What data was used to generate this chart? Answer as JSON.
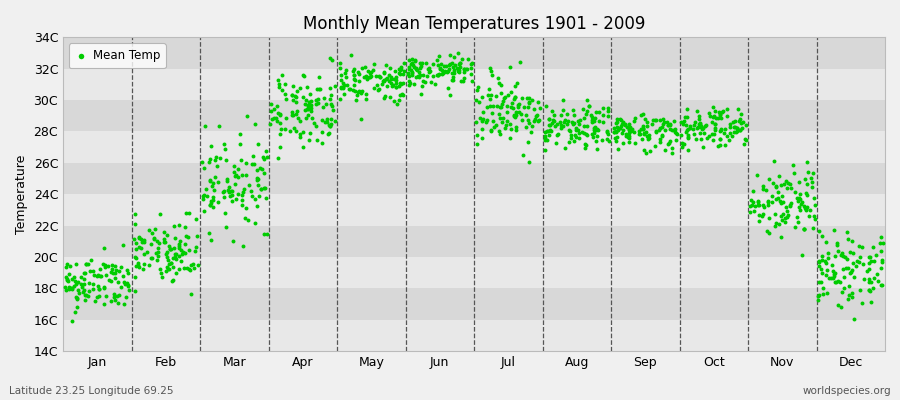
{
  "title": "Monthly Mean Temperatures 1901 - 2009",
  "ylabel": "Temperature",
  "subtitle_left": "Latitude 23.25 Longitude 69.25",
  "subtitle_right": "worldspecies.org",
  "legend_label": "Mean Temp",
  "dot_color": "#00cc00",
  "bg_color": "#f0f0f0",
  "plot_bg_color": "#f0f0f0",
  "stripe_color_light": "#e8e8e8",
  "stripe_color_dark": "#d8d8d8",
  "ylim": [
    14,
    34
  ],
  "yticks": [
    14,
    16,
    18,
    20,
    22,
    24,
    26,
    28,
    30,
    32,
    34
  ],
  "ytick_labels": [
    "14C",
    "16C",
    "18C",
    "20C",
    "22C",
    "24C",
    "26C",
    "28C",
    "30C",
    "32C",
    "34C"
  ],
  "months": [
    "Jan",
    "Feb",
    "Mar",
    "Apr",
    "May",
    "Jun",
    "Jul",
    "Aug",
    "Sep",
    "Oct",
    "Nov",
    "Dec"
  ],
  "month_means": [
    18.3,
    20.2,
    24.8,
    29.5,
    31.2,
    31.8,
    29.5,
    28.2,
    28.0,
    28.3,
    23.5,
    19.2
  ],
  "month_stds": [
    0.9,
    1.2,
    1.5,
    1.2,
    0.7,
    0.5,
    1.2,
    0.7,
    0.6,
    0.7,
    1.2,
    1.2
  ],
  "n_years": 109,
  "seed": 42
}
